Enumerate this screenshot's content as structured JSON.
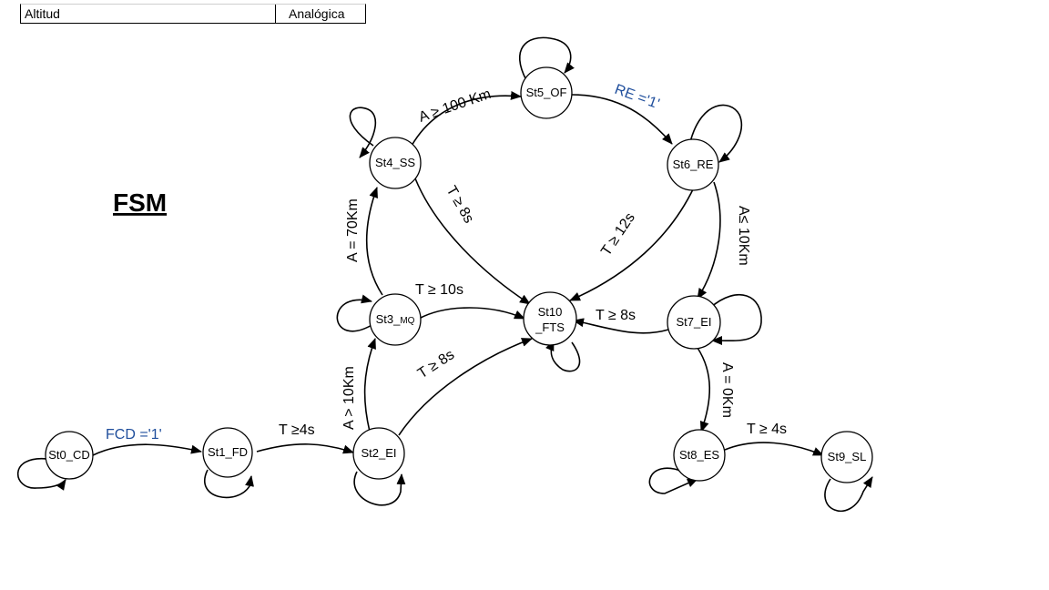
{
  "table": {
    "col1": "Altitud",
    "col2": "Analógica"
  },
  "title": "FSM",
  "states": {
    "st0": "St0_CD",
    "st1": "St1_FD",
    "st2": "St2_EI",
    "st3_main": "St3_",
    "st3_sub": "MQ",
    "st4": "St4_SS",
    "st5": "St5_OF",
    "st6": "St6_RE",
    "st7": "St7_EI",
    "st8": "St8_ES",
    "st9": "St9_SL",
    "st10_line1": "St10",
    "st10_line2": "_FTS"
  },
  "transitions": {
    "t0_1": "FCD ='1'",
    "t1_2": "T  ≥4s",
    "t2_3": "A > 10Km",
    "t2_10": "T ≥ 8s",
    "t3_4": "A = 70Km",
    "t3_10": "T ≥ 10s",
    "t4_5": "A ≥ 100 Km",
    "t4_10": "T ≥ 8s",
    "t5_6": "RE ='1'",
    "t6_10": "T ≥ 12s",
    "t6_7": "A≤ 10Km",
    "t7_10": "T  ≥ 8s",
    "t7_8": "A = 0Km",
    "t8_9": "T  ≥ 4s"
  },
  "colors": {
    "blue_label": "#1f4e9c",
    "stroke": "#000000"
  }
}
